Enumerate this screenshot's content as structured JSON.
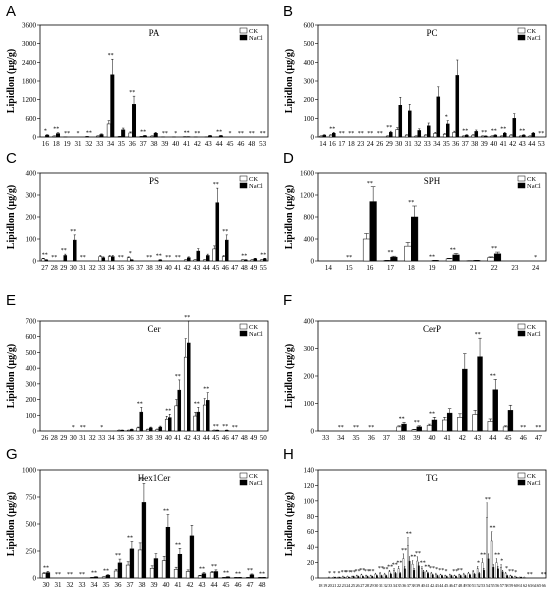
{
  "figure": {
    "ylabel": "Lipidlon (µg/g)",
    "legend": [
      "CK",
      "NaCl"
    ],
    "colors": {
      "ck": "#ffffff",
      "nacl": "#000000",
      "axis": "#000000"
    }
  },
  "chart_data": [
    {
      "letter": "A",
      "title": "PA",
      "type": "bar",
      "ylim": [
        0,
        3600
      ],
      "yticks": [
        0,
        600,
        1200,
        1800,
        2400,
        3000,
        3600
      ],
      "categories": [
        "16",
        "18",
        "19",
        "31",
        "32",
        "33",
        "34",
        "35",
        "36",
        "37",
        "38",
        "39",
        "40",
        "41",
        "42",
        "43",
        "44",
        "45",
        "46",
        "48",
        "53"
      ],
      "series": [
        {
          "name": "CK",
          "values": [
            0,
            30,
            5,
            0,
            15,
            30,
            420,
            15,
            130,
            15,
            30,
            5,
            5,
            10,
            5,
            5,
            5,
            0,
            0,
            0,
            0
          ]
        },
        {
          "name": "NaCl",
          "values": [
            60,
            110,
            0,
            0,
            0,
            80,
            2000,
            230,
            1050,
            40,
            120,
            0,
            0,
            10,
            0,
            40,
            40,
            0,
            0,
            0,
            0
          ]
        }
      ],
      "sig": [
        "*",
        "**",
        "**",
        "*",
        "**",
        "",
        "**",
        "",
        "**",
        "**",
        "",
        "**",
        "*",
        "**",
        "**",
        "",
        "**",
        "*",
        "**",
        "**",
        "**"
      ]
    },
    {
      "letter": "B",
      "title": "PC",
      "type": "bar",
      "ylim": [
        0,
        600
      ],
      "yticks": [
        0,
        100,
        200,
        300,
        400,
        500,
        600
      ],
      "categories": [
        "14",
        "16",
        "17",
        "18",
        "23",
        "24",
        "26",
        "29",
        "30",
        "31",
        "32",
        "33",
        "34",
        "35",
        "36",
        "37",
        "38",
        "39",
        "40",
        "41",
        "42",
        "43",
        "44",
        "53"
      ],
      "series": [
        {
          "name": "CK",
          "values": [
            5,
            10,
            0,
            0,
            0,
            0,
            0,
            5,
            40,
            10,
            5,
            10,
            20,
            15,
            25,
            5,
            10,
            5,
            5,
            5,
            10,
            5,
            5,
            0
          ]
        },
        {
          "name": "NaCl",
          "values": [
            10,
            20,
            0,
            0,
            0,
            0,
            0,
            25,
            170,
            140,
            35,
            60,
            215,
            70,
            330,
            10,
            30,
            5,
            10,
            20,
            100,
            10,
            20,
            0
          ]
        }
      ],
      "sig": [
        "",
        "**",
        "**",
        "**",
        "**",
        "**",
        "**",
        "**",
        "",
        "",
        "",
        "",
        "",
        "*",
        "",
        "**",
        "",
        "**",
        "**",
        "**",
        "",
        "**",
        "",
        "**"
      ]
    },
    {
      "letter": "C",
      "title": "PS",
      "type": "bar",
      "ylim": [
        0,
        400
      ],
      "yticks": [
        0,
        100,
        200,
        300,
        400
      ],
      "categories": [
        "27",
        "28",
        "29",
        "30",
        "31",
        "32",
        "33",
        "34",
        "35",
        "36",
        "37",
        "38",
        "39",
        "40",
        "41",
        "42",
        "43",
        "44",
        "45",
        "46",
        "47",
        "48",
        "49",
        "55"
      ],
      "series": [
        {
          "name": "CK",
          "values": [
            10,
            0,
            0,
            0,
            0,
            0,
            20,
            20,
            0,
            15,
            0,
            0,
            0,
            0,
            0,
            5,
            5,
            5,
            55,
            20,
            0,
            5,
            5,
            5
          ]
        },
        {
          "name": "NaCl",
          "values": [
            5,
            0,
            25,
            95,
            0,
            0,
            15,
            20,
            0,
            5,
            0,
            0,
            5,
            0,
            0,
            15,
            45,
            25,
            265,
            95,
            0,
            5,
            10,
            10
          ]
        }
      ],
      "sig": [
        "**",
        "**",
        "**",
        "**",
        "**",
        "",
        "",
        "",
        "**",
        "*",
        "",
        "**",
        "**",
        "**",
        "**",
        "",
        "",
        "",
        "**",
        "**",
        "",
        "**",
        "",
        "**"
      ]
    },
    {
      "letter": "D",
      "title": "SPH",
      "type": "bar",
      "ylim": [
        0,
        1600
      ],
      "yticks": [
        0,
        400,
        800,
        1200,
        1600
      ],
      "categories": [
        "14",
        "15",
        "16",
        "17",
        "18",
        "19",
        "20",
        "21",
        "22",
        "23",
        "24"
      ],
      "series": [
        {
          "name": "CK",
          "values": [
            0,
            0,
            400,
            10,
            270,
            0,
            40,
            5,
            60,
            0,
            0
          ]
        },
        {
          "name": "NaCl",
          "values": [
            0,
            0,
            1080,
            70,
            800,
            10,
            110,
            10,
            130,
            0,
            0
          ]
        }
      ],
      "sig": [
        "",
        "**",
        "**",
        "**",
        "**",
        "**",
        "**",
        "",
        "**",
        "",
        "*"
      ]
    },
    {
      "letter": "E",
      "title": "Cer",
      "type": "bar",
      "ylim": [
        0,
        700
      ],
      "yticks": [
        0,
        100,
        200,
        300,
        400,
        500,
        600,
        700
      ],
      "categories": [
        "26",
        "28",
        "29",
        "30",
        "31",
        "32",
        "33",
        "34",
        "35",
        "36",
        "37",
        "38",
        "39",
        "40",
        "41",
        "42",
        "43",
        "44",
        "45",
        "46",
        "47",
        "48",
        "49",
        "50"
      ],
      "series": [
        {
          "name": "CK",
          "values": [
            0,
            0,
            0,
            0,
            0,
            0,
            0,
            0,
            5,
            5,
            20,
            10,
            10,
            75,
            160,
            470,
            95,
            165,
            5,
            0,
            0,
            0,
            0,
            0
          ]
        },
        {
          "name": "NaCl",
          "values": [
            0,
            0,
            0,
            0,
            0,
            0,
            0,
            0,
            5,
            10,
            120,
            20,
            25,
            85,
            260,
            560,
            120,
            195,
            5,
            5,
            0,
            0,
            0,
            0
          ]
        }
      ],
      "sig": [
        "",
        "",
        "",
        "*",
        "**",
        "",
        "*",
        "",
        "",
        "",
        "**",
        "",
        "",
        "**",
        "**",
        "**",
        "**",
        "**",
        "**",
        "**",
        "**",
        "",
        "",
        ""
      ]
    },
    {
      "letter": "F",
      "title": "CerP",
      "type": "bar",
      "ylim": [
        0,
        400
      ],
      "yticks": [
        0,
        100,
        200,
        300,
        400
      ],
      "categories": [
        "33",
        "34",
        "35",
        "36",
        "37",
        "38",
        "39",
        "40",
        "41",
        "42",
        "43",
        "44",
        "45",
        "46",
        "47"
      ],
      "series": [
        {
          "name": "CK",
          "values": [
            0,
            0,
            0,
            0,
            0,
            15,
            5,
            20,
            40,
            50,
            60,
            35,
            15,
            0,
            0
          ]
        },
        {
          "name": "NaCl",
          "values": [
            0,
            0,
            0,
            0,
            0,
            25,
            15,
            40,
            65,
            225,
            270,
            150,
            75,
            0,
            0
          ]
        }
      ],
      "sig": [
        "",
        "**",
        "**",
        "**",
        "",
        "**",
        "**",
        "**",
        "",
        "",
        "**",
        "**",
        "",
        "**",
        "**"
      ]
    },
    {
      "letter": "G",
      "title": "Hex1Cer",
      "type": "bar",
      "ylim": [
        0,
        1000
      ],
      "yticks": [
        0,
        250,
        500,
        750,
        1000
      ],
      "categories": [
        "30",
        "31",
        "32",
        "33",
        "34",
        "35",
        "36",
        "37",
        "38",
        "39",
        "40",
        "41",
        "42",
        "43",
        "44",
        "45",
        "46",
        "47",
        "48"
      ],
      "series": [
        {
          "name": "CK",
          "values": [
            40,
            0,
            0,
            0,
            5,
            10,
            65,
            120,
            260,
            90,
            160,
            80,
            60,
            20,
            50,
            5,
            5,
            5,
            5
          ]
        },
        {
          "name": "NaCl",
          "values": [
            50,
            0,
            0,
            0,
            10,
            25,
            140,
            270,
            700,
            180,
            470,
            220,
            390,
            40,
            60,
            10,
            5,
            30,
            5
          ]
        }
      ],
      "sig": [
        "**",
        "**",
        "**",
        "**",
        "**",
        "**",
        "**",
        "**",
        "**",
        "",
        "**",
        "**",
        "",
        "**",
        "**",
        "**",
        "**",
        "**",
        "**"
      ]
    },
    {
      "letter": "H",
      "title": "TG",
      "type": "bar",
      "ylim": [
        0,
        140
      ],
      "yticks": [
        0,
        20,
        40,
        60,
        80,
        100,
        120,
        140
      ],
      "categories": [
        "18",
        "19",
        "20",
        "21",
        "22",
        "23",
        "24",
        "25",
        "26",
        "27",
        "28",
        "29",
        "30",
        "31",
        "32",
        "33",
        "34",
        "35",
        "36",
        "37",
        "38",
        "39",
        "40",
        "41",
        "42",
        "43",
        "44",
        "45",
        "46",
        "47",
        "48",
        "49",
        "50",
        "51",
        "52",
        "53",
        "54",
        "55",
        "56",
        "57",
        "58",
        "59",
        "60",
        "61",
        "62",
        "63",
        "64",
        "65",
        "66"
      ],
      "series": [
        {
          "name": "CK",
          "values": [
            0,
            0,
            1,
            1,
            1,
            2,
            2,
            2,
            3,
            4,
            3,
            3,
            5,
            6,
            5,
            8,
            10,
            12,
            25,
            42,
            18,
            22,
            12,
            8,
            6,
            5,
            4,
            3,
            4,
            3,
            4,
            5,
            6,
            8,
            12,
            20,
            78,
            48,
            20,
            14,
            6,
            3,
            2,
            1,
            1,
            0,
            0,
            0,
            0
          ]
        },
        {
          "name": "NaCl",
          "values": [
            0,
            0,
            0,
            1,
            1,
            1,
            1,
            2,
            2,
            2,
            2,
            2,
            3,
            3,
            3,
            5,
            6,
            6,
            12,
            22,
            10,
            16,
            8,
            6,
            4,
            3,
            3,
            2,
            3,
            2,
            3,
            3,
            4,
            5,
            6,
            10,
            25,
            14,
            12,
            8,
            3,
            2,
            1,
            1,
            0,
            0,
            0,
            0,
            0
          ]
        }
      ],
      "sig": [
        "",
        "",
        "*",
        "*",
        "*",
        "**",
        "**",
        "**",
        "**",
        "**",
        "**",
        "**",
        "",
        "**",
        "**",
        "**",
        "**",
        "**",
        "**",
        "**",
        "**",
        "**",
        "**",
        "**",
        "**",
        "*",
        "**",
        "*",
        "",
        "**",
        "**",
        "",
        "",
        "",
        "*",
        "**",
        "**",
        "**",
        "**",
        "*",
        "*",
        "**",
        "*",
        "",
        "",
        "**",
        "",
        "",
        "**"
      ]
    }
  ]
}
